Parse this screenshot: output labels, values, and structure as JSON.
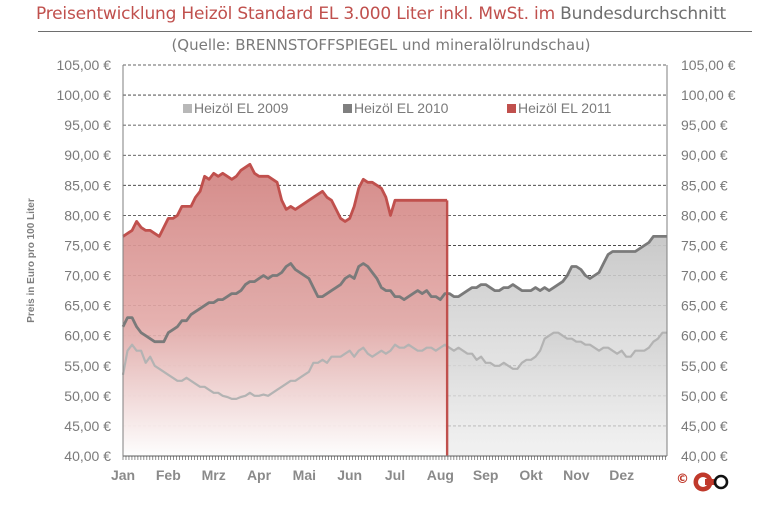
{
  "title": {
    "part1": "Preisentwicklung Heizöl Standard EL 3.000 Liter inkl. MwSt. im",
    "part2": "Bundesdurchschnitt"
  },
  "subtitle": "(Quelle: BRENNSTOFFSPIEGEL  und mineralölrundschau)",
  "copyright": "©",
  "logo_text": "CEO",
  "chart_data": {
    "type": "area",
    "ylabel": "Preis in Euro pro 100 Liter",
    "ylim": [
      40,
      105
    ],
    "yticks": [
      "40,00 €",
      "45,00 €",
      "50,00 €",
      "55,00 €",
      "60,00 €",
      "65,00 €",
      "70,00 €",
      "75,00 €",
      "80,00 €",
      "85,00 €",
      "90,00 €",
      "95,00 €",
      "100,00 €",
      "105,00 €"
    ],
    "categories": [
      "Jan",
      "Feb",
      "Mrz",
      "Apr",
      "Mai",
      "Jun",
      "Jul",
      "Aug",
      "Sep",
      "Okt",
      "Nov",
      "Dez"
    ],
    "grid": true,
    "legend_position": "top",
    "series": [
      {
        "name": "Heizöl EL 2009",
        "color": "#b8b8b8",
        "x": [
          0,
          0.1,
          0.2,
          0.3,
          0.4,
          0.5,
          0.6,
          0.7,
          0.8,
          0.9,
          1,
          1.1,
          1.2,
          1.3,
          1.4,
          1.5,
          1.6,
          1.7,
          1.8,
          1.9,
          2,
          2.1,
          2.2,
          2.3,
          2.4,
          2.5,
          2.6,
          2.7,
          2.8,
          2.9,
          3,
          3.1,
          3.2,
          3.3,
          3.4,
          3.5,
          3.6,
          3.7,
          3.8,
          3.9,
          4,
          4.1,
          4.2,
          4.3,
          4.4,
          4.5,
          4.6,
          4.7,
          4.8,
          4.9,
          5,
          5.1,
          5.2,
          5.3,
          5.4,
          5.5,
          5.6,
          5.7,
          5.8,
          5.9,
          6,
          6.1,
          6.2,
          6.3,
          6.4,
          6.5,
          6.6,
          6.7,
          6.8,
          6.9,
          7,
          7.1,
          7.2,
          7.3,
          7.4,
          7.5,
          7.6,
          7.7,
          7.8,
          7.9,
          8,
          8.1,
          8.2,
          8.3,
          8.4,
          8.5,
          8.6,
          8.7,
          8.8,
          8.9,
          9,
          9.1,
          9.2,
          9.3,
          9.4,
          9.5,
          9.6,
          9.7,
          9.8,
          9.9,
          10,
          10.1,
          10.2,
          10.3,
          10.4,
          10.5,
          10.6,
          10.7,
          10.8,
          10.9,
          11,
          11.1,
          11.2,
          11.3,
          11.4,
          11.5,
          11.6,
          11.7,
          11.8,
          11.9
        ],
        "values": [
          53.5,
          57.5,
          58.5,
          57.5,
          57.5,
          55.5,
          56.5,
          55.0,
          54.5,
          54.0,
          53.5,
          53.0,
          52.5,
          52.5,
          53.0,
          52.5,
          52.0,
          51.5,
          51.5,
          51.0,
          50.5,
          50.5,
          50.0,
          49.8,
          49.5,
          49.5,
          49.8,
          50.0,
          50.5,
          50.0,
          50.0,
          50.2,
          50.0,
          50.5,
          51.0,
          51.5,
          52.0,
          52.5,
          52.5,
          53.0,
          53.5,
          54.0,
          55.5,
          55.5,
          56.0,
          55.5,
          56.5,
          56.5,
          56.5,
          57.0,
          57.5,
          56.5,
          57.5,
          58.0,
          57.0,
          56.5,
          57.0,
          57.5,
          57.0,
          57.5,
          58.5,
          58.0,
          58.0,
          58.5,
          58.0,
          57.5,
          57.5,
          58.0,
          58.0,
          57.5,
          58.0,
          58.5,
          58.0,
          57.5,
          58.0,
          57.5,
          57.0,
          57.0,
          56.0,
          56.5,
          55.5,
          55.5,
          55.0,
          55.0,
          55.5,
          55.0,
          54.5,
          54.5,
          55.5,
          56.0,
          56.0,
          56.5,
          57.5,
          59.5,
          60.0,
          60.5,
          60.5,
          60.0,
          59.5,
          59.5,
          59.0,
          59.0,
          58.5,
          58.5,
          58.0,
          57.5,
          58.0,
          58.0,
          57.5,
          57.0,
          57.5,
          56.5,
          56.5,
          57.5,
          57.5,
          57.5,
          58.0,
          59.0,
          59.5,
          60.5
        ]
      },
      {
        "name": "Heizöl EL 2010",
        "color": "#7f7f7f",
        "x": [
          0,
          0.1,
          0.2,
          0.3,
          0.4,
          0.5,
          0.6,
          0.7,
          0.8,
          0.9,
          1,
          1.1,
          1.2,
          1.3,
          1.4,
          1.5,
          1.6,
          1.7,
          1.8,
          1.9,
          2,
          2.1,
          2.2,
          2.3,
          2.4,
          2.5,
          2.6,
          2.7,
          2.8,
          2.9,
          3,
          3.1,
          3.2,
          3.3,
          3.4,
          3.5,
          3.6,
          3.7,
          3.8,
          3.9,
          4,
          4.1,
          4.2,
          4.3,
          4.4,
          4.5,
          4.6,
          4.7,
          4.8,
          4.9,
          5,
          5.1,
          5.2,
          5.3,
          5.4,
          5.5,
          5.6,
          5.7,
          5.8,
          5.9,
          6,
          6.1,
          6.2,
          6.3,
          6.4,
          6.5,
          6.6,
          6.7,
          6.8,
          6.9,
          7,
          7.1,
          7.2,
          7.3,
          7.4,
          7.5,
          7.6,
          7.7,
          7.8,
          7.9,
          8,
          8.1,
          8.2,
          8.3,
          8.4,
          8.5,
          8.6,
          8.7,
          8.8,
          8.9,
          9,
          9.1,
          9.2,
          9.3,
          9.4,
          9.5,
          9.6,
          9.7,
          9.8,
          9.9,
          10,
          10.1,
          10.2,
          10.3,
          10.4,
          10.5,
          10.6,
          10.7,
          10.8,
          10.9,
          11,
          11.1,
          11.2,
          11.3,
          11.4,
          11.5,
          11.6,
          11.7,
          11.8,
          11.9
        ],
        "values": [
          61.5,
          63.0,
          63.0,
          61.5,
          60.5,
          60.0,
          59.5,
          59.0,
          59.0,
          59.0,
          60.5,
          61.0,
          61.5,
          62.5,
          62.5,
          63.5,
          64.0,
          64.5,
          65.0,
          65.5,
          65.5,
          66.0,
          66.0,
          66.5,
          67.0,
          67.0,
          67.5,
          68.5,
          69.0,
          69.0,
          69.5,
          70.0,
          69.5,
          70.0,
          70.0,
          70.5,
          71.5,
          72.0,
          71.0,
          70.5,
          70.0,
          69.5,
          68.0,
          66.5,
          66.5,
          67.0,
          67.5,
          68.0,
          68.5,
          69.5,
          70.0,
          69.5,
          71.5,
          72.0,
          71.5,
          70.5,
          69.5,
          68.0,
          67.5,
          67.5,
          66.5,
          66.5,
          66.0,
          66.5,
          67.0,
          67.5,
          67.0,
          67.5,
          66.5,
          66.5,
          66.0,
          67.0,
          67.0,
          66.5,
          66.5,
          67.0,
          67.5,
          68.0,
          68.0,
          68.5,
          68.5,
          68.0,
          67.5,
          67.5,
          68.0,
          68.0,
          68.5,
          68.0,
          67.5,
          67.5,
          67.5,
          68.0,
          67.5,
          68.0,
          67.5,
          68.0,
          68.5,
          69.0,
          70.0,
          71.5,
          71.5,
          71.0,
          70.0,
          69.5,
          70.0,
          70.5,
          72.0,
          73.5,
          74.0,
          74.0,
          74.0,
          74.0,
          74.0,
          74.0,
          74.5,
          75.0,
          75.5,
          76.5,
          76.5,
          76.5
        ]
      },
      {
        "name": "Heizöl EL 2011",
        "color": "#c0504d",
        "x": [
          0,
          0.1,
          0.2,
          0.3,
          0.4,
          0.5,
          0.6,
          0.7,
          0.8,
          0.9,
          1,
          1.1,
          1.2,
          1.3,
          1.4,
          1.5,
          1.6,
          1.7,
          1.8,
          1.9,
          2,
          2.1,
          2.2,
          2.3,
          2.4,
          2.5,
          2.6,
          2.7,
          2.8,
          2.9,
          3,
          3.1,
          3.2,
          3.3,
          3.4,
          3.5,
          3.6,
          3.7,
          3.8,
          3.9,
          4,
          4.1,
          4.2,
          4.3,
          4.4,
          4.5,
          4.6,
          4.7,
          4.8,
          4.9,
          5,
          5.1,
          5.2,
          5.3,
          5.4,
          5.5,
          5.6,
          5.7,
          5.8,
          5.9,
          6,
          6.1,
          6.2,
          6.3,
          6.4,
          6.5,
          6.6,
          6.7,
          6.8,
          6.9,
          7,
          7.05,
          7.1,
          7.15
        ],
        "values": [
          76.5,
          77.0,
          77.5,
          79.0,
          78.0,
          77.5,
          77.5,
          77.0,
          76.5,
          78.0,
          79.5,
          79.5,
          80.0,
          81.5,
          81.5,
          81.5,
          83.0,
          84.0,
          86.5,
          86.0,
          87.0,
          86.5,
          87.0,
          86.5,
          86.0,
          86.5,
          87.5,
          88.0,
          88.5,
          87.0,
          86.5,
          86.5,
          86.5,
          86.0,
          85.5,
          82.5,
          81.0,
          81.5,
          81.0,
          81.5,
          82.0,
          82.5,
          83.0,
          83.5,
          84.0,
          83.0,
          82.5,
          81.0,
          79.5,
          79.0,
          79.5,
          81.5,
          84.5,
          86.0,
          85.5,
          85.5,
          85.0,
          84.5,
          83.0,
          80.0,
          82.5,
          82.5,
          82.5,
          82.5,
          82.5,
          82.5,
          82.5,
          82.5,
          82.5,
          82.5,
          82.5,
          82.5,
          82.5,
          82.5
        ]
      }
    ]
  }
}
